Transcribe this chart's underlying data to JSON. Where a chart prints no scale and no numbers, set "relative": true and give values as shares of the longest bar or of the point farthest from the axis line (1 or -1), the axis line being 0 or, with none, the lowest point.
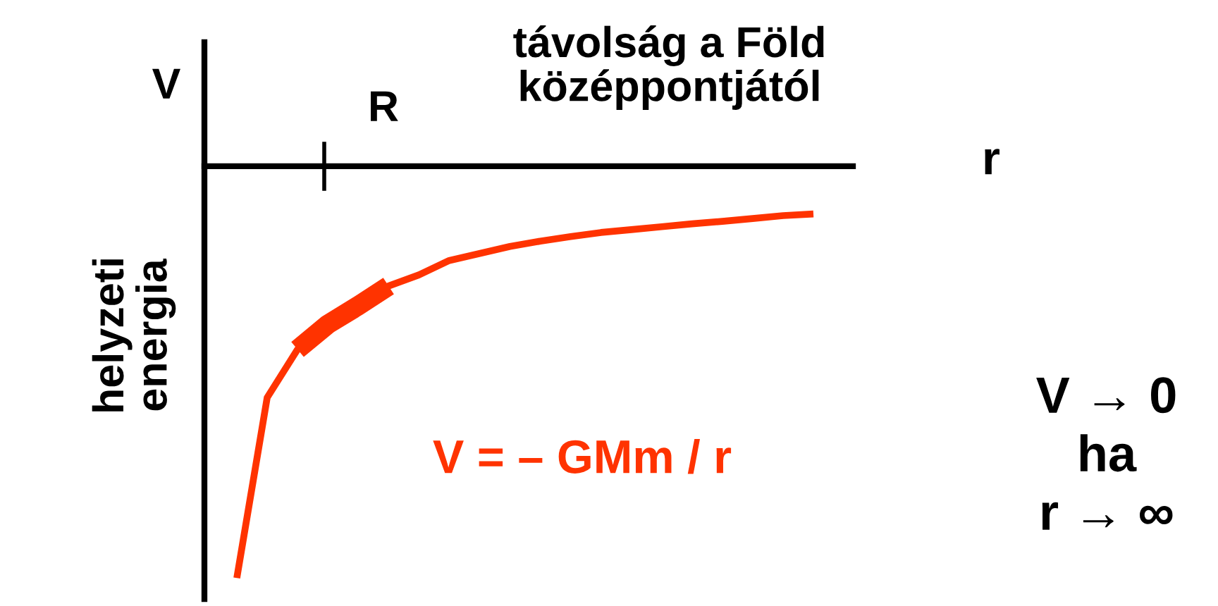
{
  "chart_data": {
    "type": "line",
    "relative": true,
    "xlabel": "távolság a Föld\nközéppontjától",
    "ylabel": "helyzeti\nenergia",
    "categories": [
      null,
      null,
      null,
      null,
      null,
      null,
      null,
      null,
      null,
      null,
      null,
      null,
      null,
      null,
      null,
      null,
      null,
      null,
      null,
      null
    ],
    "annotations": [
      "V",
      "r",
      "V = – GMm / r",
      "V → 0\nha\nr → ∞",
      "R"
    ],
    "series": [
      {
        "color": "#ff3300",
        "values": [
          -1,
          -0.562,
          -0.445,
          -0.384,
          -0.339,
          -0.291,
          -0.264,
          -0.229,
          -0.212,
          -0.195,
          -0.182,
          -0.171,
          -0.161,
          -0.154,
          -0.147,
          -0.14,
          -0.134,
          -0.127,
          -0.12,
          -0.116
        ]
      }
    ]
  }
}
